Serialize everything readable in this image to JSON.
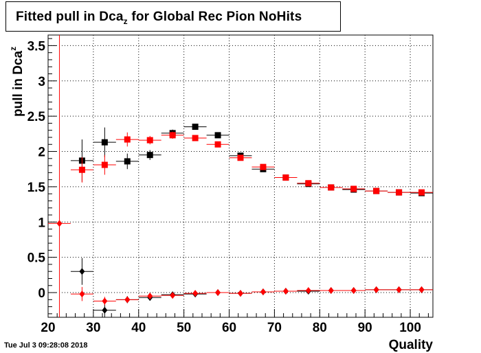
{
  "title": {
    "main": "Fitted pull in Dca",
    "sub": "z",
    "rest": " for Global Rec Pion NoHits"
  },
  "timestamp": "Tue Jul  3 09:28:08 2018",
  "chart_data": {
    "type": "scatter",
    "title": "Fitted pull in Dca_z for Global Rec Pion NoHits",
    "xlabel": "Quality",
    "ylabel": "pull in Dca_z",
    "xlim": [
      20,
      105
    ],
    "ylim": [
      -0.35,
      3.65
    ],
    "xticks": [
      20,
      30,
      40,
      50,
      60,
      70,
      80,
      90,
      100
    ],
    "yticks": [
      0,
      0.5,
      1,
      1.5,
      2,
      2.5,
      3,
      3.5
    ],
    "ytick_labels": [
      "0",
      "0.5",
      "1",
      "1.5",
      "2",
      "2.5",
      "3",
      "3.5"
    ],
    "grid": true,
    "vertical_line_x": 22.5,
    "series": [
      {
        "marker": "square",
        "color": "#000000",
        "x": [
          27.5,
          32.5,
          37.5,
          42.5,
          47.5,
          52.5,
          57.5,
          62.5,
          67.5,
          72.5,
          77.5,
          82.5,
          87.5,
          92.5,
          97.5,
          102.5
        ],
        "y": [
          1.87,
          2.13,
          1.86,
          1.95,
          2.26,
          2.35,
          2.23,
          1.94,
          1.75,
          1.63,
          1.54,
          1.49,
          1.46,
          1.44,
          1.42,
          1.41
        ],
        "yerr": [
          0.3,
          0.21,
          0.11,
          0.07,
          0.05,
          0.04,
          0.04,
          0.03,
          0.02,
          0.02,
          0.02,
          0.02,
          0.01,
          0.01,
          0.01,
          0.01
        ]
      },
      {
        "marker": "square",
        "color": "#ff0000",
        "x": [
          27.5,
          32.5,
          37.5,
          42.5,
          47.5,
          52.5,
          57.5,
          62.5,
          67.5,
          72.5,
          77.5,
          82.5,
          87.5,
          92.5,
          97.5,
          102.5
        ],
        "y": [
          1.74,
          1.81,
          2.17,
          2.16,
          2.23,
          2.19,
          2.1,
          1.91,
          1.78,
          1.63,
          1.55,
          1.49,
          1.47,
          1.44,
          1.42,
          1.42
        ],
        "yerr": [
          0.18,
          0.14,
          0.1,
          0.06,
          0.05,
          0.04,
          0.03,
          0.03,
          0.02,
          0.02,
          0.02,
          0.02,
          0.01,
          0.01,
          0.01,
          0.01
        ]
      },
      {
        "marker": "diamond",
        "color": "#000000",
        "x": [
          27.5,
          32.5,
          37.5,
          42.5,
          47.5,
          52.5,
          57.5,
          62.5,
          67.5,
          72.5,
          77.5,
          82.5,
          87.5,
          92.5,
          97.5,
          102.5
        ],
        "y": [
          0.3,
          -0.25,
          -0.1,
          -0.07,
          -0.03,
          -0.02,
          0.0,
          -0.01,
          0.01,
          0.02,
          0.02,
          0.03,
          0.03,
          0.04,
          0.04,
          0.04
        ],
        "yerr": [
          0.19,
          0.1,
          0.05,
          0.04,
          0.03,
          0.02,
          0.02,
          0.02,
          0.01,
          0.01,
          0.01,
          0.01,
          0.01,
          0.01,
          0.01,
          0.01
        ]
      },
      {
        "marker": "diamond",
        "color": "#ff0000",
        "x": [
          22.5,
          27.5,
          32.5,
          37.5,
          42.5,
          47.5,
          52.5,
          57.5,
          62.5,
          67.5,
          72.5,
          77.5,
          82.5,
          87.5,
          92.5,
          97.5,
          102.5
        ],
        "y": [
          0.98,
          -0.02,
          -0.12,
          -0.1,
          -0.05,
          -0.04,
          -0.01,
          0.0,
          -0.01,
          0.01,
          0.02,
          0.03,
          0.03,
          0.03,
          0.04,
          0.04,
          0.04
        ],
        "yerr": [
          0.0,
          0.1,
          0.06,
          0.04,
          0.03,
          0.02,
          0.02,
          0.02,
          0.01,
          0.01,
          0.01,
          0.01,
          0.01,
          0.01,
          0.01,
          0.01,
          0.01
        ]
      }
    ]
  }
}
